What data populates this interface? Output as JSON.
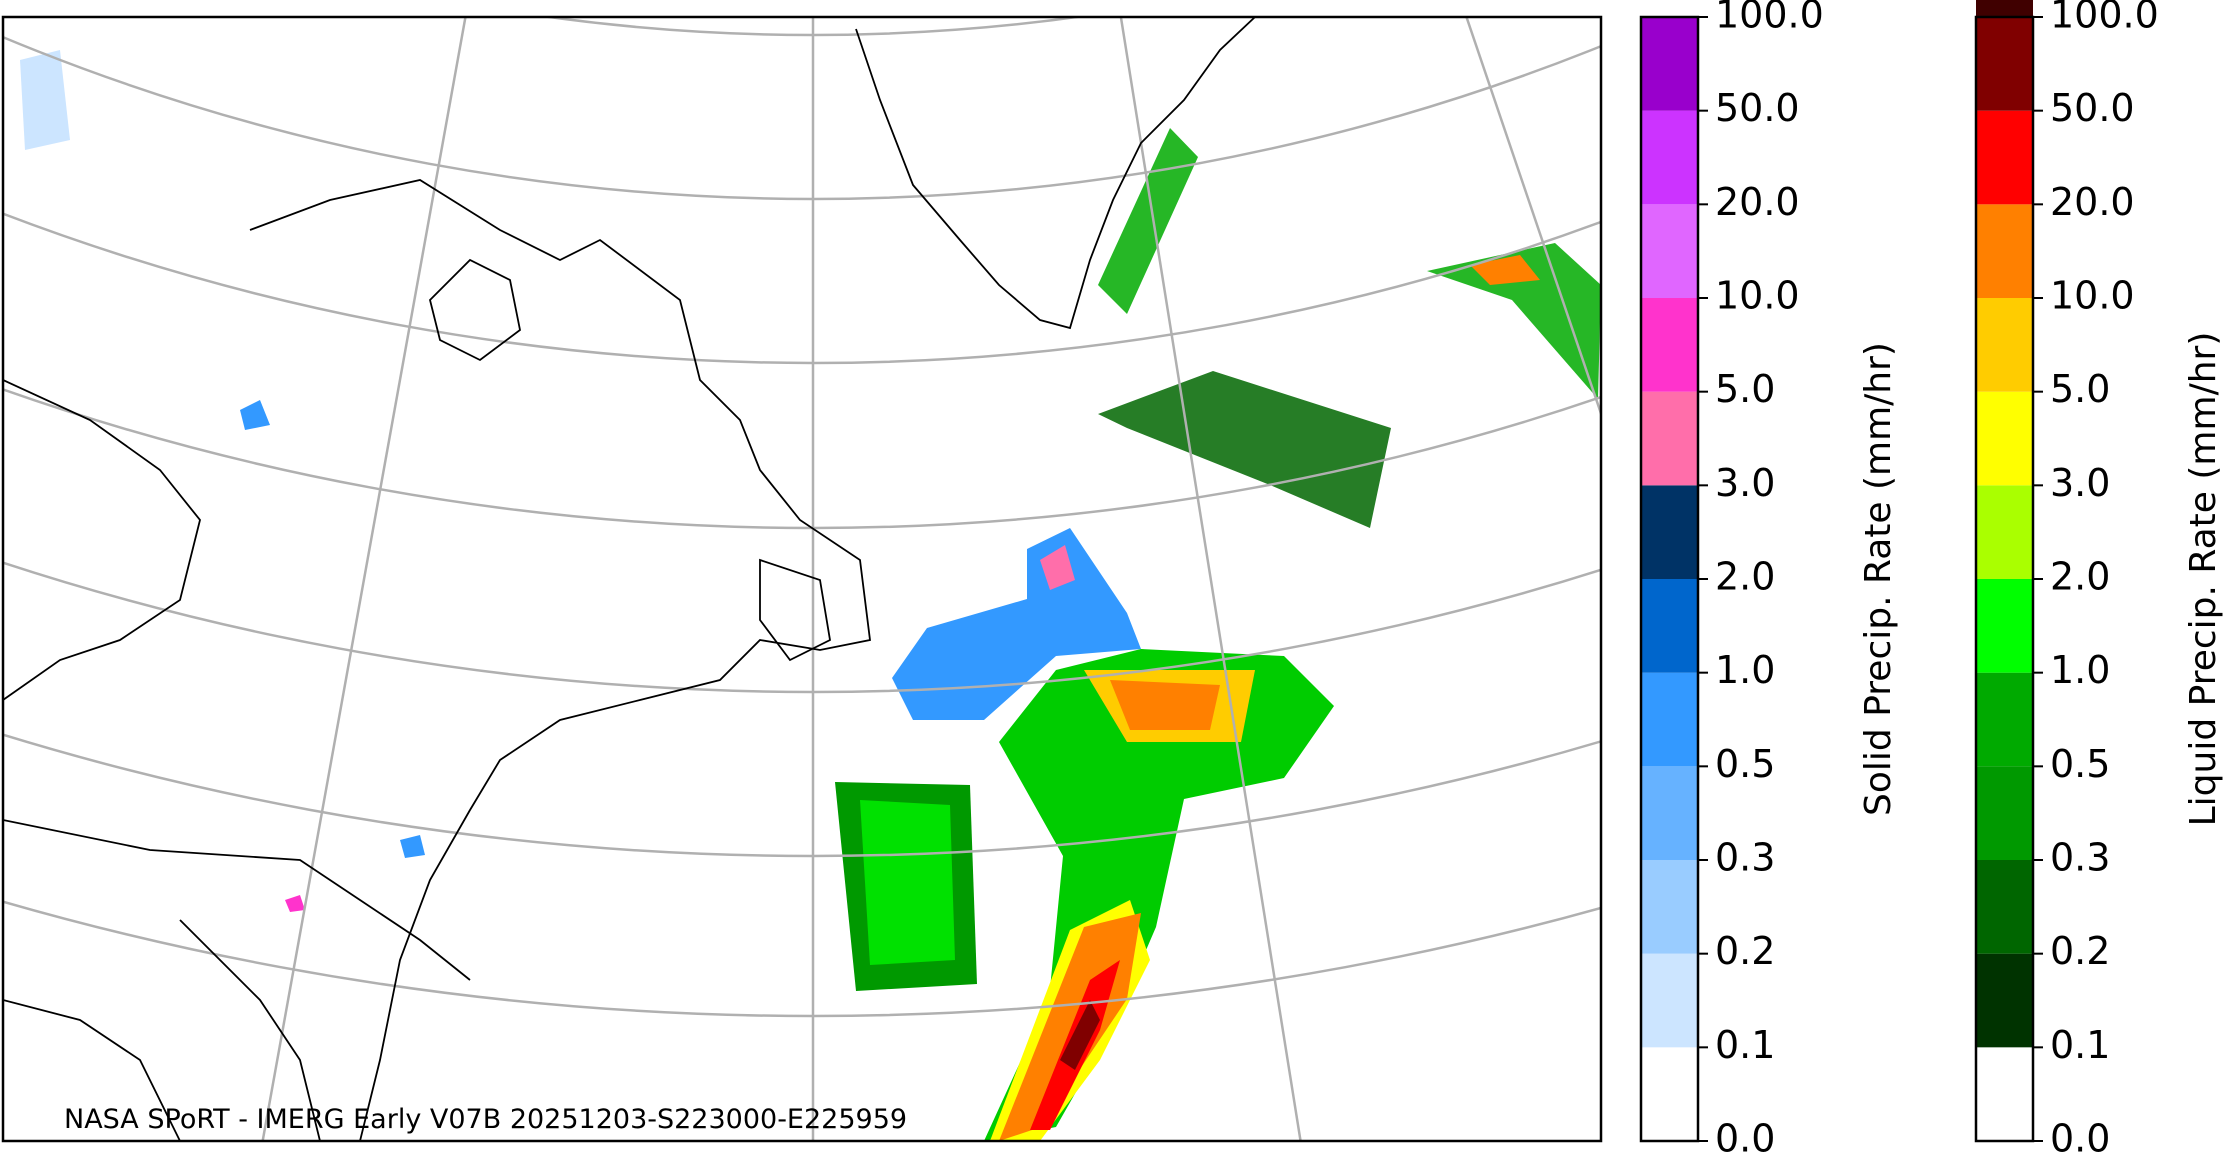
{
  "map": {
    "credit": "NASA SPoRT - IMERG Early V07B 20251203-S223000-E225959"
  },
  "colorbars": [
    {
      "label": "Solid Precip. Rate (mm/hr)",
      "ticks": [
        {
          "value": 0,
          "label": "0.0"
        },
        0.1,
        0.2,
        0.3,
        0.5,
        {
          "value": 1,
          "label": "1.0"
        },
        {
          "value": 2,
          "label": "2.0"
        },
        {
          "value": 3,
          "label": "3.0"
        },
        {
          "value": 5,
          "label": "5.0"
        },
        {
          "value": 10,
          "label": "10.0"
        },
        {
          "value": 20,
          "label": "20.0"
        },
        {
          "value": 50,
          "label": "50.0"
        },
        {
          "value": 100,
          "label": "100.0"
        }
      ],
      "colors": [
        "#ffffff",
        "#cce5ff",
        "#99ccff",
        "#66b2ff",
        "#3399ff",
        "#0066cc",
        "#003366",
        "#ff6eaa",
        "#ff33cc",
        "#e066ff",
        "#cc33ff",
        "#9900cc"
      ]
    },
    {
      "label": "Liquid Precip. Rate (mm/hr)",
      "ticks": [
        {
          "value": 0,
          "label": "0.0"
        },
        0.1,
        0.2,
        0.3,
        0.5,
        {
          "value": 1,
          "label": "1.0"
        },
        {
          "value": 2,
          "label": "2.0"
        },
        {
          "value": 3,
          "label": "3.0"
        },
        {
          "value": 5,
          "label": "5.0"
        },
        {
          "value": 10,
          "label": "10.0"
        },
        {
          "value": 20,
          "label": "20.0"
        },
        {
          "value": 50,
          "label": "50.0"
        },
        {
          "value": 100,
          "label": "100.0"
        }
      ],
      "colors": [
        "#ffffff",
        "#003300",
        "#006600",
        "#009900",
        "#00aa00",
        "#00ff00",
        "#aaff00",
        "#ffff00",
        "#ffcc00",
        "#ff8000",
        "#ff0000",
        "#800000",
        "#400000"
      ]
    }
  ]
}
